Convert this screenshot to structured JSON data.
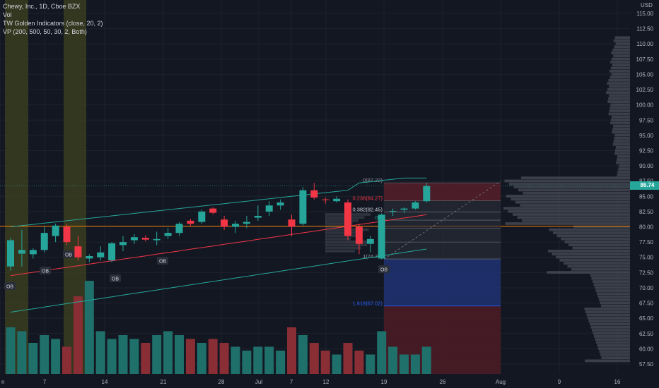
{
  "legend": {
    "symbol_line": "Chewy, Inc., 1D, Cboe BZX",
    "vol": "Vol",
    "golden": "TW Golden Indicators (close, 20, 2)",
    "vp": "VP (200, 500, 50, 30, 2, Both)"
  },
  "axis": {
    "currency": "USD",
    "price_ticks": [
      "115.00",
      "112.50",
      "110.00",
      "107.50",
      "105.00",
      "102.50",
      "100.00",
      "97.50",
      "95.00",
      "92.50",
      "90.00",
      "87.50",
      "85.00",
      "82.50",
      "80.00",
      "77.50",
      "75.00",
      "72.50",
      "70.00",
      "67.50",
      "65.00",
      "62.50",
      "60.00",
      "57.50"
    ],
    "current_price": "86.74",
    "date_ticks": [
      "n",
      "7",
      "14",
      "21",
      "28",
      "Jul",
      "7",
      "12",
      "19",
      "26",
      "Aug",
      "9",
      "16"
    ]
  },
  "fib_levels": [
    {
      "label": "0(87.22)",
      "color": "#9598a1"
    },
    {
      "label": "0.236(84.27)",
      "color": "#f23645"
    },
    {
      "label": "0.382(82.45)",
      "color": "#d1d4dc"
    },
    {
      "label": "0.5",
      "color": "#26a69a"
    },
    {
      "label": "0.",
      "color": "#26a69a"
    },
    {
      "label": "1(74.73)",
      "color": "#9598a1"
    },
    {
      "label": "1.618(67.02)",
      "color": "#2962ff"
    }
  ],
  "ob_labels": [
    "OB",
    "OB",
    "OB",
    "OB",
    "OB",
    "OB"
  ],
  "colors": {
    "background": "#131722",
    "up": "#26a69a",
    "down": "#f23645",
    "up_vol": "#1f6f6a",
    "down_vol": "#8a2e35",
    "orange_line": "#f57c00",
    "band": "#26a69a",
    "ma": "#f23645"
  },
  "chart_data": {
    "type": "candlestick",
    "candles": [
      {
        "o": 73.5,
        "h": 78.2,
        "l": 72.8,
        "c": 77.8
      },
      {
        "o": 75.6,
        "h": 79.5,
        "l": 73.5,
        "c": 76.2
      },
      {
        "o": 75.5,
        "h": 76.5,
        "l": 74.8,
        "c": 76.2
      },
      {
        "o": 76.2,
        "h": 80.0,
        "l": 75.8,
        "c": 79.0
      },
      {
        "o": 78.5,
        "h": 80.5,
        "l": 77.5,
        "c": 80.2
      },
      {
        "o": 80.0,
        "h": 80.5,
        "l": 77.0,
        "c": 77.5
      },
      {
        "o": 76.8,
        "h": 78.5,
        "l": 74.5,
        "c": 75.0
      },
      {
        "o": 74.8,
        "h": 75.5,
        "l": 74.2,
        "c": 75.2
      },
      {
        "o": 75.0,
        "h": 76.8,
        "l": 74.5,
        "c": 75.8
      },
      {
        "o": 74.5,
        "h": 77.5,
        "l": 74.2,
        "c": 77.3
      },
      {
        "o": 77.0,
        "h": 78.5,
        "l": 76.0,
        "c": 77.5
      },
      {
        "o": 77.8,
        "h": 78.8,
        "l": 77.2,
        "c": 78.3
      },
      {
        "o": 78.2,
        "h": 78.6,
        "l": 77.6,
        "c": 77.9
      },
      {
        "o": 77.8,
        "h": 79.2,
        "l": 77.0,
        "c": 78.0
      },
      {
        "o": 78.5,
        "h": 79.8,
        "l": 78.0,
        "c": 79.0
      },
      {
        "o": 79.0,
        "h": 80.8,
        "l": 78.5,
        "c": 80.5
      },
      {
        "o": 81.0,
        "h": 81.3,
        "l": 80.2,
        "c": 80.5
      },
      {
        "o": 80.8,
        "h": 82.8,
        "l": 80.5,
        "c": 82.5
      },
      {
        "o": 83.0,
        "h": 83.2,
        "l": 82.0,
        "c": 82.3
      },
      {
        "o": 81.2,
        "h": 81.8,
        "l": 79.5,
        "c": 80.0
      },
      {
        "o": 80.0,
        "h": 81.0,
        "l": 79.0,
        "c": 80.5
      },
      {
        "o": 80.5,
        "h": 81.8,
        "l": 79.8,
        "c": 80.8
      },
      {
        "o": 81.5,
        "h": 83.5,
        "l": 81.0,
        "c": 81.8
      },
      {
        "o": 82.5,
        "h": 84.2,
        "l": 81.8,
        "c": 83.5
      },
      {
        "o": 83.5,
        "h": 84.5,
        "l": 82.8,
        "c": 84.0
      },
      {
        "o": 81.2,
        "h": 82.0,
        "l": 78.5,
        "c": 80.0
      },
      {
        "o": 80.5,
        "h": 86.5,
        "l": 80.2,
        "c": 86.0
      },
      {
        "o": 86.0,
        "h": 87.2,
        "l": 84.5,
        "c": 84.8
      },
      {
        "o": 84.5,
        "h": 84.8,
        "l": 83.8,
        "c": 84.4
      },
      {
        "o": 84.2,
        "h": 85.0,
        "l": 84.0,
        "c": 84.6
      },
      {
        "o": 84.0,
        "h": 84.5,
        "l": 77.8,
        "c": 78.5
      },
      {
        "o": 80.0,
        "h": 80.5,
        "l": 75.5,
        "c": 77.2
      },
      {
        "o": 77.2,
        "h": 78.5,
        "l": 75.8,
        "c": 78.0
      },
      {
        "o": 74.8,
        "h": 82.2,
        "l": 74.7,
        "c": 82.0
      },
      {
        "o": 82.5,
        "h": 83.0,
        "l": 81.8,
        "c": 82.6
      },
      {
        "o": 82.8,
        "h": 83.2,
        "l": 82.3,
        "c": 83.0
      },
      {
        "o": 83.0,
        "h": 84.2,
        "l": 82.8,
        "c": 84.0
      },
      {
        "o": 84.2,
        "h": 87.2,
        "l": 84.0,
        "c": 86.7
      }
    ],
    "volume": [
      12,
      11,
      8,
      10,
      9,
      7,
      20,
      24,
      11,
      9,
      10,
      9,
      8,
      10,
      11,
      10,
      9,
      8,
      9,
      8,
      7,
      6,
      7,
      7,
      6,
      12,
      10,
      8,
      6,
      5,
      8,
      6,
      5,
      11,
      7,
      5,
      5,
      7
    ]
  }
}
